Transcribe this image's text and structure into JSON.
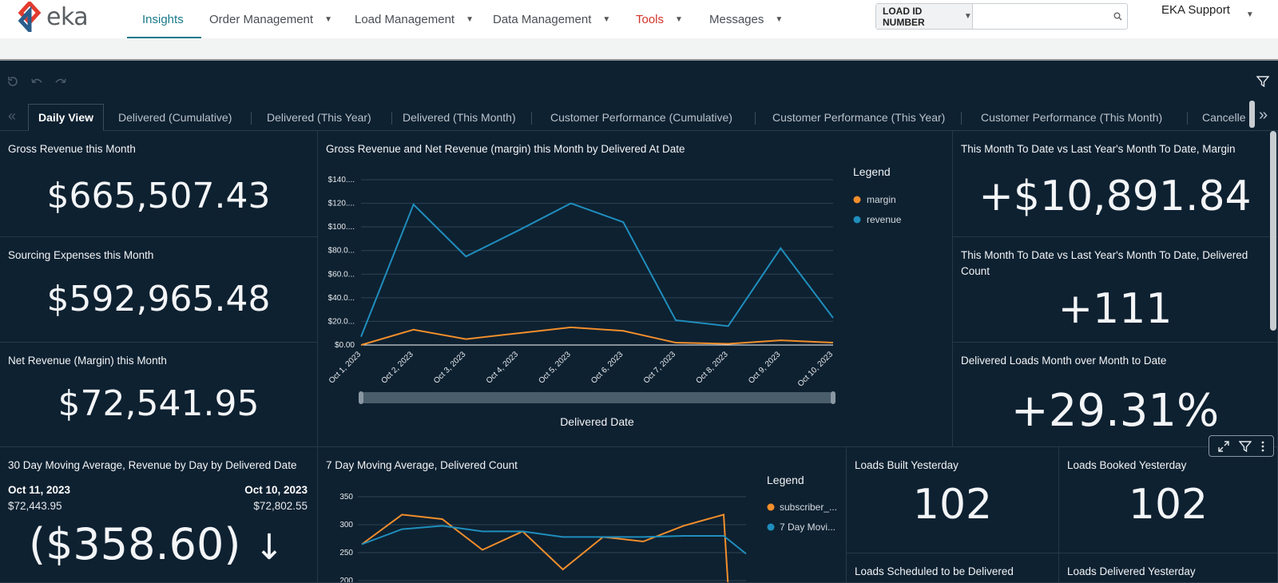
{
  "header": {
    "logo_text": "eka",
    "nav": [
      {
        "label": "Insights"
      },
      {
        "label": "Order Management"
      },
      {
        "label": "Load Management"
      },
      {
        "label": "Data Management"
      },
      {
        "label": "Tools"
      },
      {
        "label": "Messages"
      }
    ],
    "search": {
      "type_label": "LOAD ID NUMBER",
      "placeholder": "",
      "value": ""
    },
    "user": "EKA Support"
  },
  "tabs": [
    {
      "label": "Daily View"
    },
    {
      "label": "Delivered (Cumulative)"
    },
    {
      "label": "Delivered (This Year)"
    },
    {
      "label": "Delivered (This Month)"
    },
    {
      "label": "Customer Performance (Cumulative)"
    },
    {
      "label": "Customer Performance (This Year)"
    },
    {
      "label": "Customer Performance (This Month)"
    },
    {
      "label": "Cancelle"
    }
  ],
  "kpis": {
    "gross_revenue": {
      "title": "Gross Revenue this Month",
      "value": "$665,507.43"
    },
    "sourcing": {
      "title": "Sourcing Expenses this Month",
      "value": "$592,965.48"
    },
    "net_revenue": {
      "title": "Net Revenue (Margin) this Month",
      "value": "$72,541.95"
    },
    "mtd_margin": {
      "title": "This Month To Date vs Last Year's Month To Date, Margin",
      "value": "+$10,891.84"
    },
    "mtd_delivered": {
      "title": "This Month To Date vs Last Year's Month To Date, Delivered Count",
      "value": "+111"
    },
    "mom_delivered": {
      "title": "Delivered Loads Month over Month to Date",
      "value": "+29.31%"
    },
    "moving_avg": {
      "title": "30 Day Moving Average, Revenue by Day by Delivered Date",
      "left_date": "Oct 11, 2023",
      "left_value": "$72,443.95",
      "right_date": "Oct 10, 2023",
      "right_value": "$72,802.55",
      "value": "($358.60)",
      "arrow": "↓"
    },
    "loads_built": {
      "title": "Loads Built Yesterday",
      "value": "102"
    },
    "loads_booked": {
      "title": "Loads Booked Yesterday",
      "value": "102"
    },
    "loads_scheduled": {
      "title": "Loads Scheduled to be Delivered"
    },
    "loads_delivered": {
      "title": "Loads Delivered Yesterday"
    }
  },
  "chart_data": [
    {
      "type": "line",
      "title": "Gross Revenue and Net Revenue (margin) this Month by Delivered At Date",
      "xlabel": "Delivered Date",
      "ylabel": "",
      "legend_title": "Legend",
      "legend_position": "right",
      "x": [
        "Oct 1, 2023",
        "Oct 2, 2023",
        "Oct 3, 2023",
        "Oct 4, 2023",
        "Oct 5, 2023",
        "Oct 6, 2023",
        "Oct 7, 2023",
        "Oct 8, 2023",
        "Oct 9, 2023",
        "Oct 10, 2023"
      ],
      "y_ticks": [
        "$0.00",
        "$20.0...",
        "$40.0...",
        "$60.0...",
        "$80.0...",
        "$100....",
        "$120....",
        "$140...."
      ],
      "ylim": [
        0,
        140
      ],
      "grid": true,
      "series": [
        {
          "name": "margin",
          "color": "#f28e2b",
          "values": [
            0,
            13,
            5,
            10,
            15,
            12,
            2,
            1,
            4,
            2
          ]
        },
        {
          "name": "revenue",
          "color": "#1f8ebd",
          "values": [
            7,
            119,
            75,
            97,
            120,
            104,
            21,
            16,
            82,
            23
          ]
        }
      ]
    },
    {
      "type": "line",
      "title": "7 Day Moving Average, Delivered Count",
      "legend_title": "Legend",
      "legend_position": "right",
      "y_ticks": [
        "200",
        "250",
        "300",
        "350"
      ],
      "ylim": [
        200,
        350
      ],
      "grid": true,
      "series": [
        {
          "name": "subscriber_...",
          "color": "#f28e2b",
          "values": [
            265,
            318,
            310,
            255,
            288,
            220,
            278,
            270,
            298,
            318,
            180
          ]
        },
        {
          "name": "7 Day Movi...",
          "color": "#1f8ebd",
          "values": [
            265,
            292,
            298,
            288,
            288,
            278,
            278,
            278,
            280,
            280,
            248
          ]
        }
      ]
    }
  ],
  "colors": {
    "background": "#0e2131",
    "accent": "#1a7a8a",
    "tools": "#d2342a",
    "margin": "#f28e2b",
    "revenue": "#1f8ebd"
  }
}
